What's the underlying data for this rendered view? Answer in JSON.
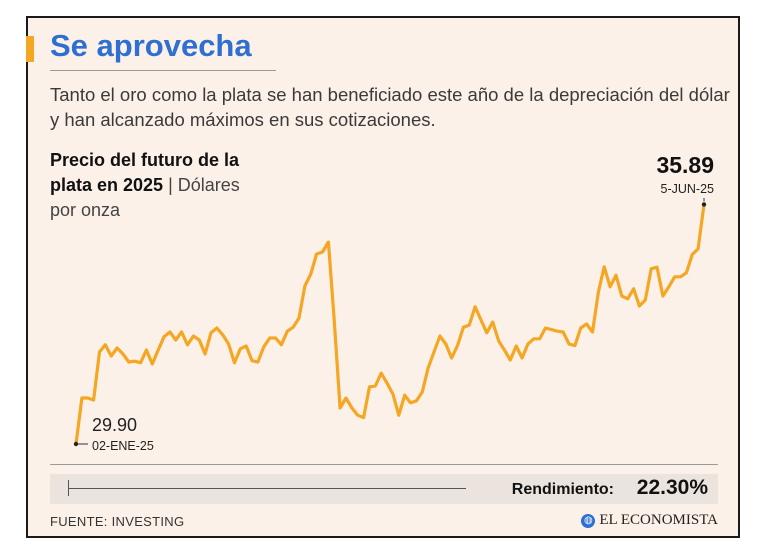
{
  "header": {
    "title": "Se aprovecha",
    "subtitle": "Tanto el oro como la plata se han beneficiado este año de la depreciación del dólar y han alcanzado máximos en sus cotizaciones."
  },
  "chart_label": {
    "bold": "Precio del futuro de la plata en 2025",
    "separator": " | ",
    "unit": "Dólares por onza"
  },
  "annotations": {
    "start_value": "29.90",
    "start_date": "02-ENE-25",
    "end_value": "35.89",
    "end_date": "5-JUN-25"
  },
  "performance": {
    "label": "Rendimiento:",
    "value": "22.30%"
  },
  "footer": {
    "source": "FUENTE: INVESTING",
    "brand": "EL ECONOMISTA",
    "brand_icon": "globe-icon"
  },
  "colors": {
    "title": "#2f6fd1",
    "accent": "#f5a623",
    "line": "#f5a623",
    "background": "#fcf1e8"
  },
  "chart_data": {
    "type": "line",
    "title": "Precio del futuro de la plata en 2025",
    "ylabel": "Dólares por onza",
    "xlabel": "",
    "x_range": [
      "02-ENE-25",
      "5-JUN-25"
    ],
    "ylim": [
      29.5,
      36.8
    ],
    "grid": false,
    "series": [
      {
        "name": "Futuro de la plata",
        "values": [
          29.9,
          31.05,
          31.05,
          31.0,
          32.2,
          32.38,
          32.1,
          32.3,
          32.15,
          31.95,
          31.97,
          31.93,
          32.25,
          31.9,
          32.25,
          32.58,
          32.7,
          32.5,
          32.7,
          32.38,
          32.6,
          32.5,
          32.15,
          32.68,
          32.8,
          32.63,
          32.4,
          31.93,
          32.28,
          32.35,
          31.98,
          31.95,
          32.33,
          32.55,
          32.55,
          32.38,
          32.72,
          32.82,
          33.05,
          33.85,
          34.15,
          34.65,
          34.7,
          34.95,
          33.0,
          30.8,
          31.05,
          30.8,
          30.62,
          30.56,
          31.33,
          31.35,
          31.67,
          31.42,
          31.15,
          30.62,
          31.12,
          30.93,
          30.98,
          31.2,
          31.8,
          32.2,
          32.6,
          32.4,
          32.05,
          32.36,
          32.82,
          32.87,
          33.33,
          33.0,
          32.68,
          32.95,
          32.48,
          32.25,
          32.0,
          32.35,
          32.05,
          32.4,
          32.53,
          32.53,
          32.8,
          32.76,
          32.72,
          32.7,
          32.4,
          32.36,
          32.8,
          32.9,
          32.7,
          33.7,
          34.33,
          33.83,
          34.12,
          33.6,
          33.53,
          33.78,
          33.35,
          33.5,
          34.28,
          34.32,
          33.6,
          33.83,
          34.08,
          34.08,
          34.18,
          34.64,
          34.78,
          35.89
        ]
      }
    ]
  }
}
